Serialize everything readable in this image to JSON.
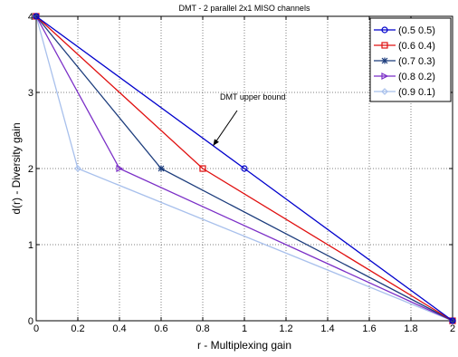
{
  "chart_data": {
    "type": "line",
    "title": "DMT - 2 parallel 2x1 MISO channels",
    "xlabel": "r - Multiplexing gain",
    "ylabel": "d(r) - Diversity gain",
    "xlim": [
      0,
      2
    ],
    "ylim": [
      0,
      4
    ],
    "xticks": [
      "0",
      "0.2",
      "0.4",
      "0.6",
      "0.8",
      "1",
      "1.2",
      "1.4",
      "1.6",
      "1.8",
      "2"
    ],
    "yticks": [
      "0",
      "1",
      "2",
      "3",
      "4"
    ],
    "grid": true,
    "legend_position": "top-right",
    "series": [
      {
        "name": "(0.5 0.5)",
        "color": "#0000cc",
        "marker": "circle",
        "x": [
          0,
          1,
          2
        ],
        "y": [
          4,
          2,
          0
        ]
      },
      {
        "name": "(0.6 0.4)",
        "color": "#e01010",
        "marker": "square",
        "x": [
          0,
          0.8,
          2
        ],
        "y": [
          4,
          2,
          0
        ]
      },
      {
        "name": "(0.7 0.3)",
        "color": "#1c3c7c",
        "marker": "star",
        "x": [
          0,
          0.6,
          2
        ],
        "y": [
          4,
          2,
          0
        ]
      },
      {
        "name": "(0.8 0.2)",
        "color": "#7b2fc7",
        "marker": "triangle-right",
        "x": [
          0,
          0.4,
          2
        ],
        "y": [
          4,
          2,
          0
        ]
      },
      {
        "name": "(0.9 0.1)",
        "color": "#a8c0ec",
        "marker": "diamond",
        "x": [
          0,
          0.2,
          2
        ],
        "y": [
          4,
          2,
          0
        ]
      }
    ],
    "annotation": {
      "text": "DMT upper bound",
      "points_to": {
        "x": 0.85,
        "y": 2.3
      }
    }
  }
}
